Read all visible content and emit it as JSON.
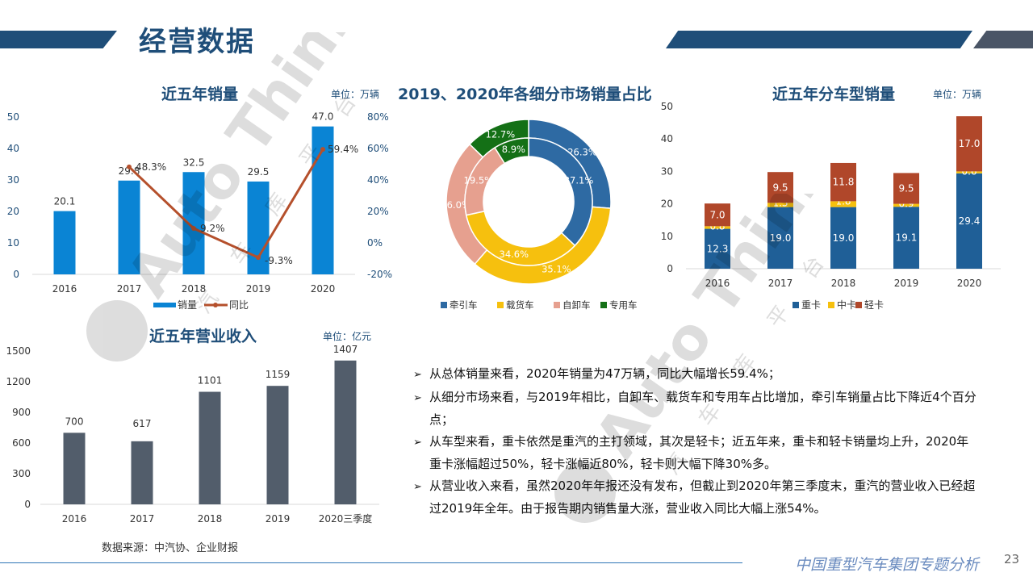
{
  "page": {
    "title": "经营数据",
    "source": "数据来源：中汽协、企业财报",
    "footer": "中国重型汽车集团专题分析",
    "page_number": "23",
    "watermark_text": "Auto Thinker",
    "watermark_cn": "汽 车 库 平 台"
  },
  "colors": {
    "primary": "#1f4e79",
    "bar_blue": "#0a84d4",
    "line_orange": "#b5502c",
    "heavy": "#1f5f97",
    "medium": "#f6c00e",
    "light": "#b0472a",
    "revenue_bar": "#525d6b",
    "tractor": "#2e6aa3",
    "cargo": "#f6c00e",
    "dump": "#e6a08f",
    "special": "#147016"
  },
  "bullets": [
    "从总体销量来看，2020年销量为47万辆，同比大幅增长59.4%；",
    "从细分市场来看，与2019年相比，自卸车、载货车和专用车占比增加，牵引车销量占比下降近4个百分点；",
    "从车型来看，重卡依然是重汽的主打领域，其次是轻卡；近五年来，重卡和轻卡销量均上升，2020年重卡涨幅超过50%，轻卡涨幅近80%，轻卡则大幅下降30%多。",
    "从营业收入来看，虽然2020年年报还没有发布，但截止到2020年第三季度末，重汽的营业收入已经超过2019年全年。由于报告期内销售量大涨，营业收入同比大幅上涨54%。"
  ],
  "chart_data": [
    {
      "id": "sales",
      "type": "bar",
      "title": "近五年销量",
      "unit": "单位：万辆",
      "categories": [
        "2016",
        "2017",
        "2018",
        "2019",
        "2020"
      ],
      "series": [
        {
          "name": "销量",
          "type": "bar",
          "values": [
            20.1,
            29.8,
            32.5,
            29.5,
            47.0
          ],
          "labels": [
            "20.1",
            "29.8",
            "32.5",
            "29.5",
            "47.0"
          ]
        },
        {
          "name": "同比",
          "type": "line",
          "axis": "right",
          "values": [
            null,
            48.3,
            9.2,
            -9.3,
            59.4
          ],
          "labels": [
            "",
            "48.3%",
            "9.2%",
            "-9.3%",
            "59.4%"
          ]
        }
      ],
      "ylim": [
        0,
        50
      ],
      "yticks": [
        "0",
        "10",
        "20",
        "30",
        "40",
        "50"
      ],
      "y2lim": [
        -20,
        80
      ],
      "y2ticks": [
        "-20%",
        "0%",
        "20%",
        "40%",
        "60%",
        "80%"
      ],
      "legend": "bottom"
    },
    {
      "id": "segments",
      "type": "pie",
      "subtype": "doughnut",
      "title": "2019、2020年各细分市场销量占比",
      "categories": [
        "牵引车",
        "载货车",
        "自卸车",
        "专用车"
      ],
      "series": [
        {
          "ring": "outer",
          "values": [
            26.3,
            35.1,
            26.0,
            12.7
          ],
          "labels": [
            "26.3%",
            "35.1%",
            "26.0%",
            "12.7%"
          ]
        },
        {
          "ring": "inner",
          "values": [
            37.1,
            34.6,
            19.5,
            8.9
          ],
          "labels": [
            "37.1%",
            "34.6%",
            "19.5%",
            "8.9%"
          ]
        }
      ],
      "legend": "bottom"
    },
    {
      "id": "types",
      "type": "bar",
      "subtype": "stacked",
      "title": "近五年分车型销量",
      "unit": "单位：万辆",
      "categories": [
        "2016",
        "2017",
        "2018",
        "2019",
        "2020"
      ],
      "series": [
        {
          "name": "重卡",
          "values": [
            12.3,
            19.0,
            19.0,
            19.1,
            29.4
          ],
          "labels": [
            "12.3",
            "19.0",
            "19.0",
            "19.1",
            "29.4"
          ]
        },
        {
          "name": "中卡",
          "values": [
            0.8,
            1.3,
            1.8,
            0.9,
            0.6
          ],
          "labels": [
            "0.8",
            "1.3",
            "1.8",
            "0.9",
            "0.6"
          ]
        },
        {
          "name": "轻卡",
          "values": [
            7.0,
            9.5,
            11.8,
            9.5,
            17.0
          ],
          "labels": [
            "7.0",
            "9.5",
            "11.8",
            "9.5",
            "17.0"
          ]
        }
      ],
      "ylim": [
        0,
        50
      ],
      "yticks": [
        "0",
        "10",
        "20",
        "30",
        "40",
        "50"
      ],
      "legend": "bottom"
    },
    {
      "id": "revenue",
      "type": "bar",
      "title": "近五年营业收入",
      "unit": "单位：亿元",
      "categories": [
        "2016",
        "2017",
        "2018",
        "2019",
        "2020三季度"
      ],
      "values": [
        700,
        617,
        1101,
        1159,
        1407
      ],
      "labels": [
        "700",
        "617",
        "1101",
        "1159",
        "1407"
      ],
      "ylim": [
        0,
        1500
      ],
      "yticks": [
        "0",
        "300",
        "600",
        "900",
        "1200",
        "1500"
      ]
    }
  ]
}
